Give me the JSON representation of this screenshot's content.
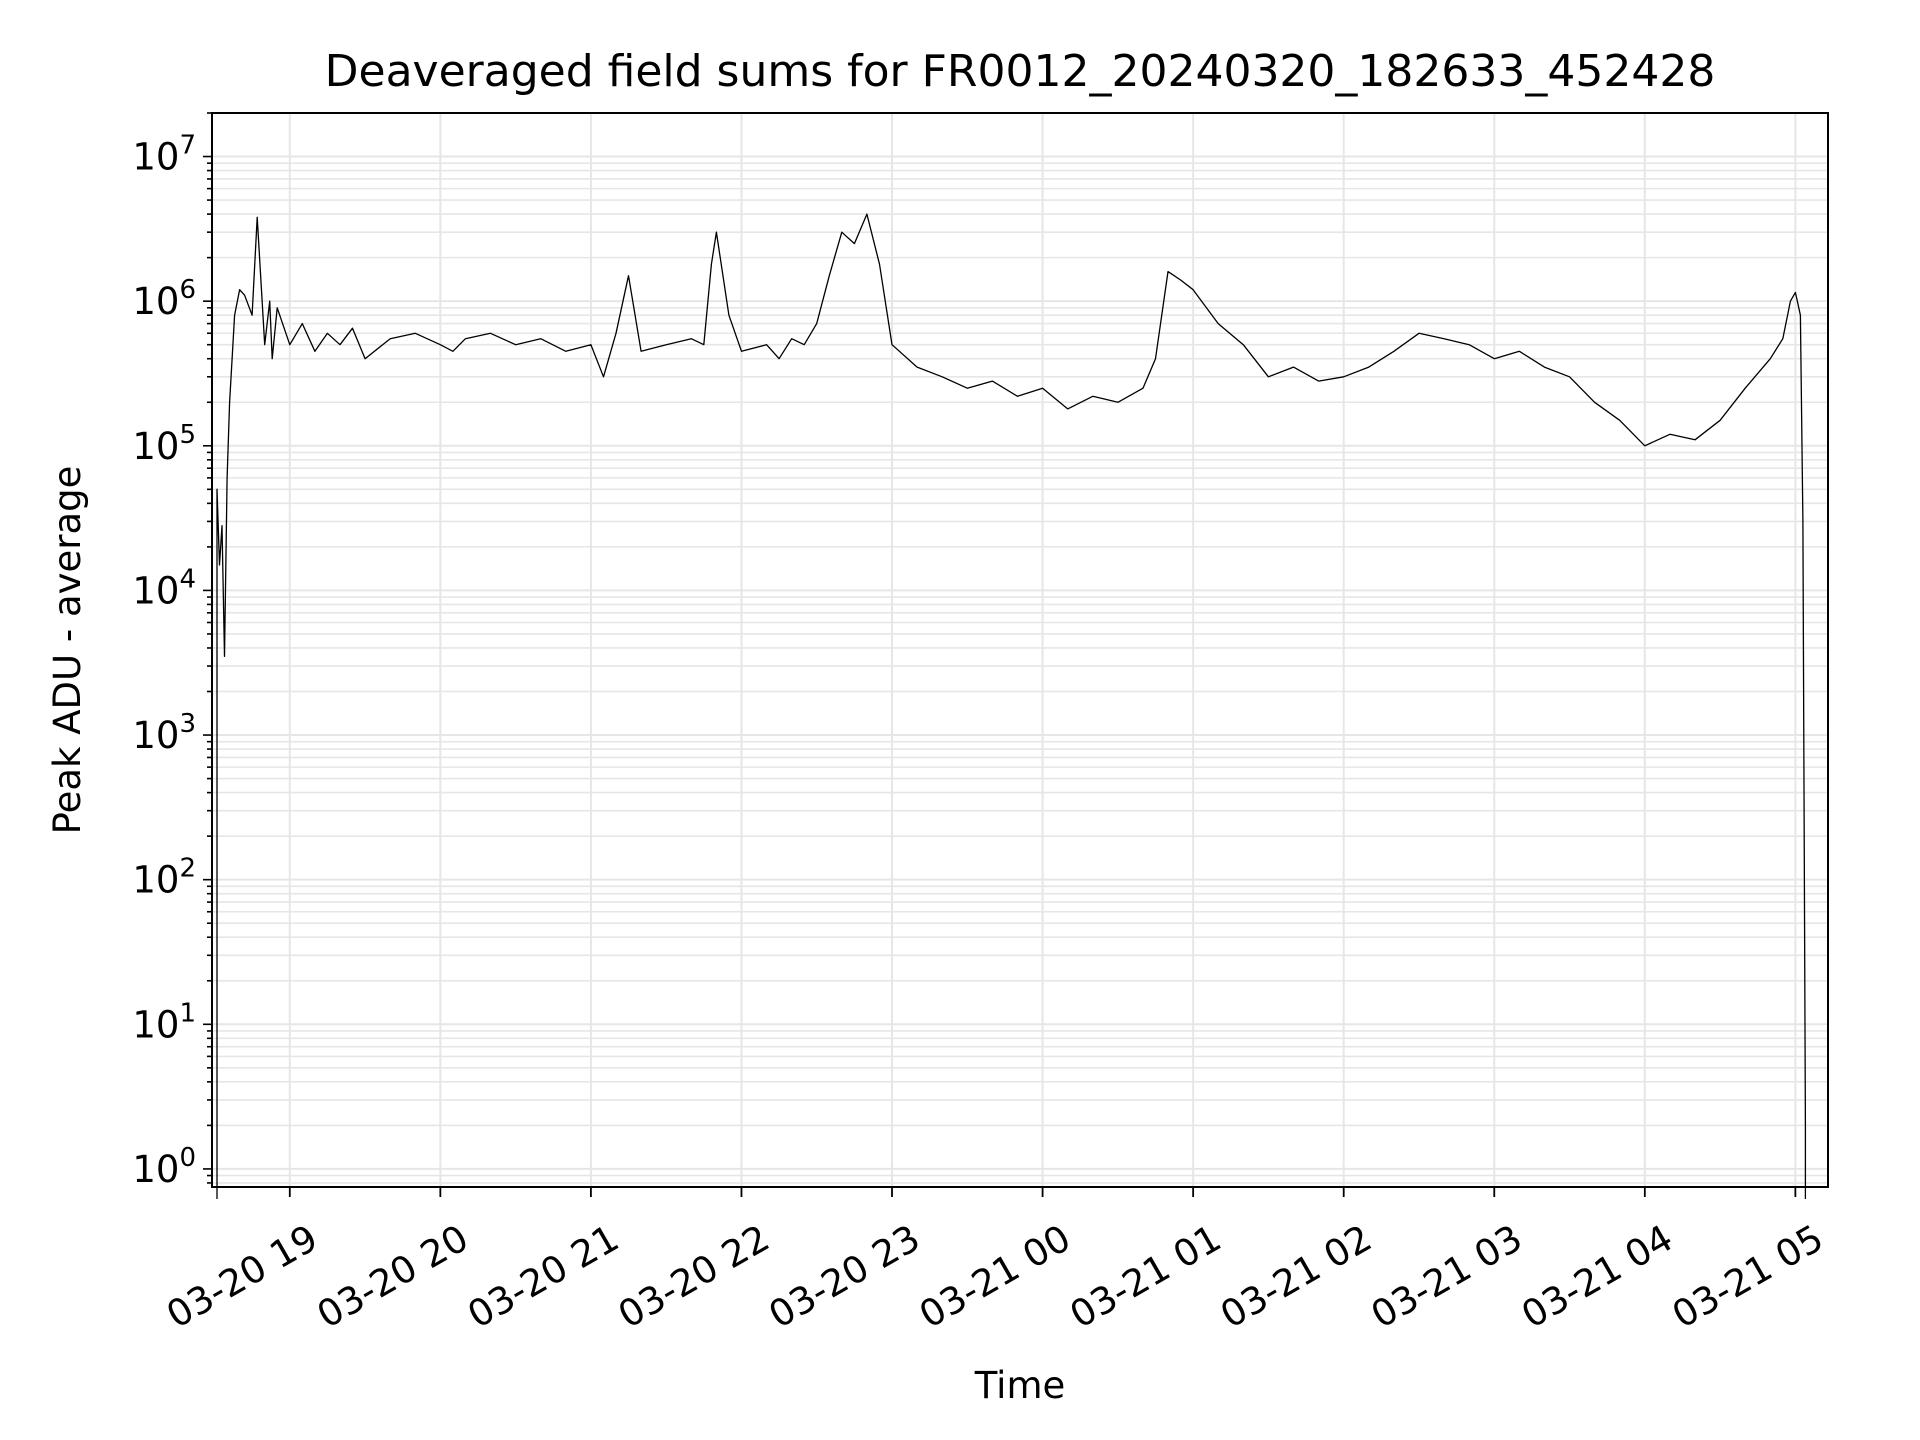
{
  "chart_data": {
    "type": "line",
    "title": "Deaveraged field sums for FR0012_20240320_182633_452428",
    "xlabel": "Time",
    "ylabel": "Peak ADU - average",
    "y_scale": "log",
    "ylim": [
      0.75,
      20000000
    ],
    "xlim": [
      "2024-03-20 18:29",
      "2024-03-21 05:13"
    ],
    "grid": true,
    "line_color": "#000000",
    "grid_color": "#e6e6e6",
    "x_ticks": [
      {
        "value": "2024-03-20 19:00",
        "label": "03-20 19"
      },
      {
        "value": "2024-03-20 20:00",
        "label": "03-20 20"
      },
      {
        "value": "2024-03-20 21:00",
        "label": "03-20 21"
      },
      {
        "value": "2024-03-20 22:00",
        "label": "03-20 22"
      },
      {
        "value": "2024-03-20 23:00",
        "label": "03-20 23"
      },
      {
        "value": "2024-03-21 00:00",
        "label": "03-21 00"
      },
      {
        "value": "2024-03-21 01:00",
        "label": "03-21 01"
      },
      {
        "value": "2024-03-21 02:00",
        "label": "03-21 02"
      },
      {
        "value": "2024-03-21 03:00",
        "label": "03-21 03"
      },
      {
        "value": "2024-03-21 04:00",
        "label": "03-21 04"
      },
      {
        "value": "2024-03-21 05:00",
        "label": "03-21 05"
      }
    ],
    "y_ticks": [
      {
        "value": 1,
        "base": "10",
        "exp": "0"
      },
      {
        "value": 10,
        "base": "10",
        "exp": "1"
      },
      {
        "value": 100,
        "base": "10",
        "exp": "2"
      },
      {
        "value": 1000,
        "base": "10",
        "exp": "3"
      },
      {
        "value": 10000,
        "base": "10",
        "exp": "4"
      },
      {
        "value": 100000,
        "base": "10",
        "exp": "5"
      },
      {
        "value": 1000000,
        "base": "10",
        "exp": "6"
      },
      {
        "value": 10000000,
        "base": "10",
        "exp": "7"
      }
    ],
    "series": [
      {
        "x": [
          "2024-03-20 18:31",
          "2024-03-20 18:31",
          "2024-03-20 18:32",
          "2024-03-20 18:33",
          "2024-03-20 18:34",
          "2024-03-20 18:35",
          "2024-03-20 18:36",
          "2024-03-20 18:38",
          "2024-03-20 18:40",
          "2024-03-20 18:42",
          "2024-03-20 18:45",
          "2024-03-20 18:47",
          "2024-03-20 18:50",
          "2024-03-20 18:52",
          "2024-03-20 18:53",
          "2024-03-20 18:55",
          "2024-03-20 19:00",
          "2024-03-20 19:05",
          "2024-03-20 19:10",
          "2024-03-20 19:15",
          "2024-03-20 19:20",
          "2024-03-20 19:25",
          "2024-03-20 19:30",
          "2024-03-20 19:40",
          "2024-03-20 19:50",
          "2024-03-20 20:00",
          "2024-03-20 20:05",
          "2024-03-20 20:10",
          "2024-03-20 20:20",
          "2024-03-20 20:30",
          "2024-03-20 20:40",
          "2024-03-20 20:50",
          "2024-03-20 21:00",
          "2024-03-20 21:05",
          "2024-03-20 21:10",
          "2024-03-20 21:15",
          "2024-03-20 21:20",
          "2024-03-20 21:30",
          "2024-03-20 21:40",
          "2024-03-20 21:45",
          "2024-03-20 21:48",
          "2024-03-20 21:50",
          "2024-03-20 21:55",
          "2024-03-20 22:00",
          "2024-03-20 22:10",
          "2024-03-20 22:15",
          "2024-03-20 22:20",
          "2024-03-20 22:25",
          "2024-03-20 22:30",
          "2024-03-20 22:35",
          "2024-03-20 22:40",
          "2024-03-20 22:45",
          "2024-03-20 22:50",
          "2024-03-20 22:55",
          "2024-03-20 23:00",
          "2024-03-20 23:10",
          "2024-03-20 23:20",
          "2024-03-20 23:30",
          "2024-03-20 23:40",
          "2024-03-20 23:50",
          "2024-03-21 00:00",
          "2024-03-21 00:10",
          "2024-03-21 00:20",
          "2024-03-21 00:30",
          "2024-03-21 00:40",
          "2024-03-21 00:45",
          "2024-03-21 00:50",
          "2024-03-21 00:55",
          "2024-03-21 01:00",
          "2024-03-21 01:10",
          "2024-03-21 01:20",
          "2024-03-21 01:30",
          "2024-03-21 01:40",
          "2024-03-21 01:50",
          "2024-03-21 02:00",
          "2024-03-21 02:10",
          "2024-03-21 02:20",
          "2024-03-21 02:30",
          "2024-03-21 02:40",
          "2024-03-21 02:50",
          "2024-03-21 03:00",
          "2024-03-21 03:10",
          "2024-03-21 03:20",
          "2024-03-21 03:30",
          "2024-03-21 03:40",
          "2024-03-21 03:50",
          "2024-03-21 04:00",
          "2024-03-21 04:10",
          "2024-03-21 04:20",
          "2024-03-21 04:30",
          "2024-03-21 04:40",
          "2024-03-21 04:50",
          "2024-03-21 04:55",
          "2024-03-21 04:58",
          "2024-03-21 05:00",
          "2024-03-21 05:02",
          "2024-03-21 05:03",
          "2024-03-21 05:04",
          "2024-03-21 05:04"
        ],
        "y": [
          0.5,
          50000,
          15000,
          28000,
          3500,
          60000,
          200000,
          800000,
          1200000,
          1100000,
          800000,
          3800000,
          500000,
          1000000,
          400000,
          900000,
          500000,
          700000,
          450000,
          600000,
          500000,
          650000,
          400000,
          550000,
          600000,
          500000,
          450000,
          550000,
          600000,
          500000,
          550000,
          450000,
          500000,
          300000,
          600000,
          1500000,
          450000,
          500000,
          550000,
          500000,
          1800000,
          3000000,
          800000,
          450000,
          500000,
          400000,
          550000,
          500000,
          700000,
          1500000,
          3000000,
          2500000,
          4000000,
          1800000,
          500000,
          350000,
          300000,
          250000,
          280000,
          220000,
          250000,
          180000,
          220000,
          200000,
          250000,
          400000,
          1600000,
          1400000,
          1200000,
          700000,
          500000,
          300000,
          350000,
          280000,
          300000,
          350000,
          450000,
          600000,
          550000,
          500000,
          400000,
          450000,
          350000,
          300000,
          200000,
          150000,
          100000,
          120000,
          110000,
          150000,
          250000,
          400000,
          550000,
          1000000,
          1150000,
          800000,
          30000,
          2,
          0.5
        ]
      }
    ]
  }
}
